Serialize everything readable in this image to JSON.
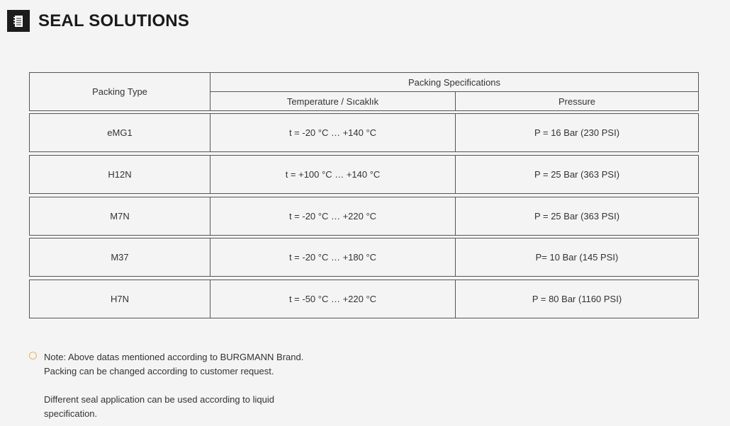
{
  "header": {
    "title": "SEAL SOLUTIONS",
    "icon": "notebook-icon"
  },
  "table": {
    "col_packing_type": "Packing Type",
    "group_header": "Packing Specifications",
    "col_temperature": "Temperature / Sıcaklık",
    "col_pressure": "Pressure",
    "rows": [
      {
        "type": "eMG1",
        "temperature": "t = -20 °C … +140 °C",
        "pressure": "P = 16 Bar (230 PSI)"
      },
      {
        "type": "H12N",
        "temperature": "t = +100 °C  … +140 °C",
        "pressure": "P = 25 Bar (363 PSI)"
      },
      {
        "type": "M7N",
        "temperature": "t = -20 °C … +220 °C",
        "pressure": "P = 25 Bar (363 PSI)"
      },
      {
        "type": "M37",
        "temperature": "t = -20 °C … +180 °C",
        "pressure": "P= 10 Bar (145 PSI)"
      },
      {
        "type": "H7N",
        "temperature": "t = -50 °C … +220 °C",
        "pressure": "P = 80 Bar (1160 PSI)"
      }
    ]
  },
  "note": {
    "line1": "Note: Above datas mentioned according to BURGMANN Brand.",
    "line2": "Packing can be changed according to customer request.",
    "line3": "Different seal application can be used according to liquid",
    "line4": "specification.",
    "bullet_color": "#e8b45a"
  }
}
